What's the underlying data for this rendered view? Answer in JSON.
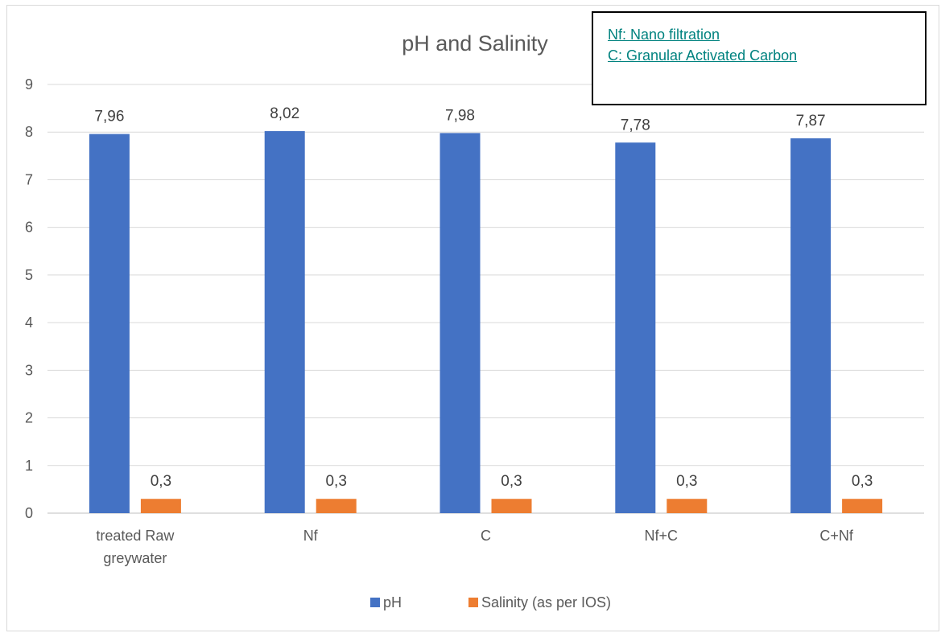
{
  "notes": [
    "Nf: Nano filtration",
    "C: Granular Activated Carbon"
  ],
  "chart_data": {
    "type": "bar",
    "title": "pH and Salinity",
    "categories": [
      [
        "treated Raw",
        "greywater"
      ],
      [
        "Nf"
      ],
      [
        "C"
      ],
      [
        "Nf+C"
      ],
      [
        "C+Nf"
      ]
    ],
    "series": [
      {
        "name": "pH",
        "color": "#4472c4",
        "values": [
          7.96,
          8.02,
          7.98,
          7.78,
          7.87
        ],
        "labels": [
          "7,96",
          "8,02",
          "7,98",
          "7,78",
          "7,87"
        ]
      },
      {
        "name": "Salinity (as per IOS)",
        "color": "#ed7d31",
        "values": [
          0.3,
          0.3,
          0.3,
          0.3,
          0.3
        ],
        "labels": [
          "0,3",
          "0,3",
          "0,3",
          "0,3",
          "0,3"
        ]
      }
    ],
    "ylim": [
      0,
      9
    ],
    "yticks": [
      0,
      1,
      2,
      3,
      4,
      5,
      6,
      7,
      8,
      9
    ],
    "grid": true,
    "legend": "bottom",
    "xlabel": "",
    "ylabel": ""
  }
}
